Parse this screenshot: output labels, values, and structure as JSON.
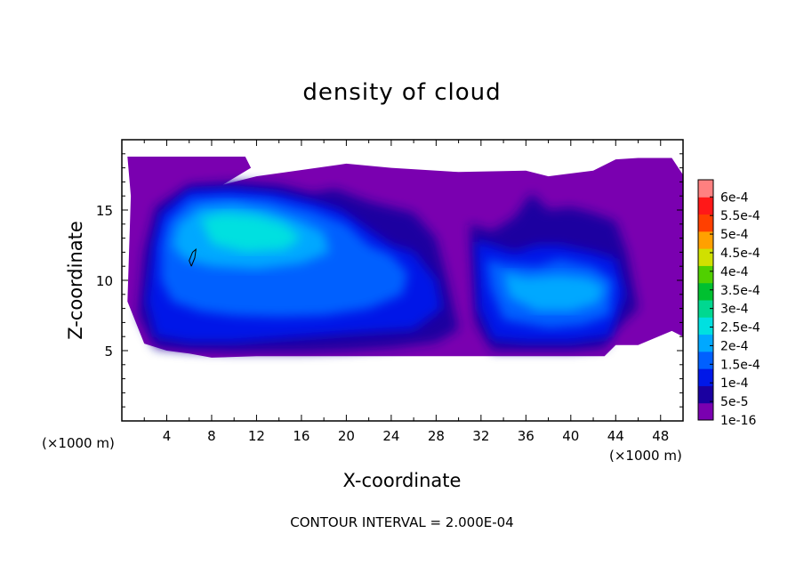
{
  "chart_data": {
    "type": "heatmap",
    "title": "density of cloud",
    "xlabel": "X-coordinate",
    "ylabel": "Z-coordinate",
    "x_unit": "(×1000 m)",
    "x_unit_right": "(×1000 m)",
    "xlim": [
      0,
      50
    ],
    "ylim": [
      0,
      20
    ],
    "x_ticks": [
      4,
      8,
      12,
      16,
      20,
      24,
      28,
      32,
      36,
      40,
      44,
      48
    ],
    "y_ticks": [
      5,
      10,
      15
    ],
    "colorbar": {
      "levels": [
        "1e-16",
        "5e-5",
        "1e-4",
        "1.5e-4",
        "2e-4",
        "2.5e-4",
        "3e-4",
        "3.5e-4",
        "4e-4",
        "4.5e-4",
        "5e-4",
        "5.5e-4",
        "6e-4"
      ],
      "colors": [
        "#7a00b0",
        "#1a00a0",
        "#0018e8",
        "#0060ff",
        "#00a8ff",
        "#00e0e0",
        "#00d890",
        "#00c030",
        "#50d000",
        "#d0e000",
        "#ffa000",
        "#ff4000",
        "#ff1818",
        "#ff8080"
      ]
    },
    "regions": [
      {
        "name": "cloud-envelope",
        "level": 0,
        "x": [
          0.5,
          3,
          5,
          9,
          11,
          11.5,
          9,
          12,
          20,
          24,
          30,
          36,
          38,
          42,
          44,
          46,
          49,
          50,
          50,
          49,
          46,
          44,
          43,
          40,
          32,
          20,
          12,
          8,
          6,
          4,
          2,
          0.5,
          0.8
        ],
        "y": [
          18.8,
          18.8,
          18.8,
          18.8,
          18.8,
          18.0,
          16.8,
          17.4,
          18.3,
          18.0,
          17.7,
          17.8,
          17.4,
          17.8,
          18.6,
          18.7,
          18.7,
          17.5,
          6.0,
          6.4,
          5.4,
          5.4,
          4.6,
          4.6,
          4.6,
          4.6,
          4.6,
          4.5,
          4.8,
          5.0,
          5.5,
          8.5,
          16.0
        ]
      },
      {
        "name": "cloud-band-left-outer",
        "level": 1,
        "x": [
          3,
          6,
          10,
          14,
          17,
          19,
          22,
          26,
          28,
          29,
          30,
          28,
          24,
          20,
          16,
          10,
          6,
          3,
          1.5,
          2
        ],
        "y": [
          15.2,
          16.8,
          17.0,
          16.8,
          16.2,
          16.5,
          15.6,
          14.8,
          13.0,
          10.0,
          6.5,
          5.6,
          5.2,
          5.0,
          4.9,
          4.9,
          5.0,
          5.2,
          7.5,
          12.0
        ]
      },
      {
        "name": "cloud-band-right-outer",
        "level": 1,
        "x": [
          31,
          33,
          35,
          36.5,
          38,
          40,
          42,
          44,
          45,
          46,
          44,
          43,
          40,
          36,
          33,
          31.5
        ],
        "y": [
          14.0,
          13.5,
          14.5,
          16.2,
          15.0,
          15.2,
          14.8,
          14.2,
          12.0,
          8.0,
          6.5,
          5.2,
          5.0,
          5.0,
          5.0,
          7.0
        ]
      },
      {
        "name": "cloud-band-left-mid",
        "level": 2,
        "x": [
          3.5,
          6,
          10,
          14,
          17,
          18,
          19.5,
          22,
          24,
          26,
          27,
          28,
          28.5,
          26,
          20,
          15,
          10,
          6,
          3,
          2.2,
          2.8
        ],
        "y": [
          14.8,
          16.4,
          16.5,
          16.2,
          15.6,
          15.4,
          15.0,
          13.6,
          12.5,
          12.0,
          11.0,
          10.0,
          8.0,
          6.5,
          6.2,
          5.9,
          5.6,
          5.6,
          6.0,
          8.5,
          12.5
        ]
      },
      {
        "name": "cloud-band-right-mid",
        "level": 2,
        "x": [
          31.5,
          33,
          35,
          37,
          39,
          42,
          44,
          44.8,
          43.5,
          40,
          36,
          33,
          31.8
        ],
        "y": [
          12.8,
          12.5,
          12.0,
          12.5,
          12.5,
          12.0,
          11.5,
          9.0,
          6.0,
          5.6,
          5.6,
          5.8,
          8.0
        ]
      },
      {
        "name": "cloud-band-left-inner",
        "level": 3,
        "x": [
          4,
          6,
          9,
          13,
          17,
          18.5,
          20,
          22,
          24,
          25.5,
          25,
          22,
          18,
          14,
          10,
          7,
          4.5,
          3.5,
          3.5
        ],
        "y": [
          14.2,
          15.8,
          16.0,
          15.8,
          15.0,
          14.5,
          14.0,
          12.5,
          11.8,
          10.5,
          9.0,
          8.0,
          7.5,
          7.4,
          7.5,
          7.8,
          8.5,
          10.0,
          12.5
        ]
      },
      {
        "name": "cloud-band-right-inner",
        "level": 3,
        "x": [
          32.5,
          34,
          37,
          39,
          42,
          43.8,
          43.5,
          41,
          38,
          34,
          32.8
        ],
        "y": [
          11.5,
          11.2,
          11.0,
          11.5,
          11.0,
          10.0,
          7.5,
          6.8,
          6.6,
          7.2,
          9.5
        ]
      },
      {
        "name": "cloud-band-left-core",
        "level": 4,
        "x": [
          5,
          7,
          10,
          13,
          16,
          18,
          18.5,
          16,
          12,
          8,
          5.5,
          4.5
        ],
        "y": [
          14.0,
          15.2,
          15.4,
          15.0,
          14.2,
          13.4,
          12.0,
          11.2,
          10.8,
          11.0,
          11.5,
          12.5
        ]
      },
      {
        "name": "cloud-band-right-core",
        "level": 4,
        "x": [
          34,
          36,
          39,
          41.5,
          43,
          42.5,
          40,
          37,
          34.5
        ],
        "y": [
          10.6,
          10.2,
          10.4,
          10.2,
          9.6,
          8.4,
          7.8,
          7.8,
          8.8
        ]
      },
      {
        "name": "cloud-band-left-peak",
        "level": 5,
        "x": [
          7,
          9,
          12,
          14.5,
          16,
          14.5,
          11,
          8
        ],
        "y": [
          14.4,
          14.8,
          14.6,
          14.0,
          13.0,
          12.2,
          12.0,
          12.6
        ]
      }
    ],
    "contour_line": {
      "x": [
        6.2,
        6.5,
        6.6,
        6.3,
        6.0,
        6.2
      ],
      "y": [
        11.0,
        11.6,
        12.2,
        12.0,
        11.4,
        11.0
      ]
    }
  },
  "footer": {
    "contour_interval": "CONTOUR INTERVAL = 2.000E-04"
  }
}
